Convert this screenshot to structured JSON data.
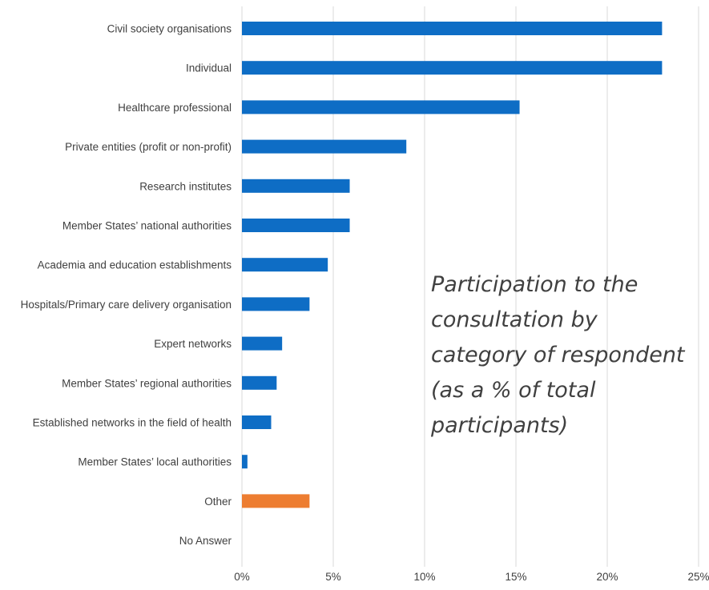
{
  "chart_data": {
    "type": "bar",
    "orientation": "horizontal",
    "title": "Participation to the\nconsultation by\ncategory of respondent\n(as a % of total\nparticipants)",
    "categories": [
      "Civil society organisations",
      "Individual",
      "Healthcare professional",
      "Private entities (profit or non-profit)",
      "Research institutes",
      "Member States’ national authorities",
      "Academia and education establishments",
      "Hospitals/Primary care delivery organisation",
      "Expert networks",
      "Member States’ regional authorities",
      "Established networks in the field of health",
      "Member States’ local authorities",
      "Other",
      "No Answer"
    ],
    "values": [
      23.0,
      23.0,
      15.2,
      9.0,
      5.9,
      5.9,
      4.7,
      3.7,
      2.2,
      1.9,
      1.6,
      0.3,
      3.7,
      0.0
    ],
    "xlim": [
      0,
      25
    ],
    "xticks": [
      "0%",
      "5%",
      "10%",
      "15%",
      "20%",
      "25%"
    ],
    "grid": "vertical",
    "colors": {
      "default": "#0E6DC5",
      "highlight": "#ED7D31",
      "grid": "#D9D9D9"
    },
    "highlight_categories": [
      "Other"
    ]
  }
}
